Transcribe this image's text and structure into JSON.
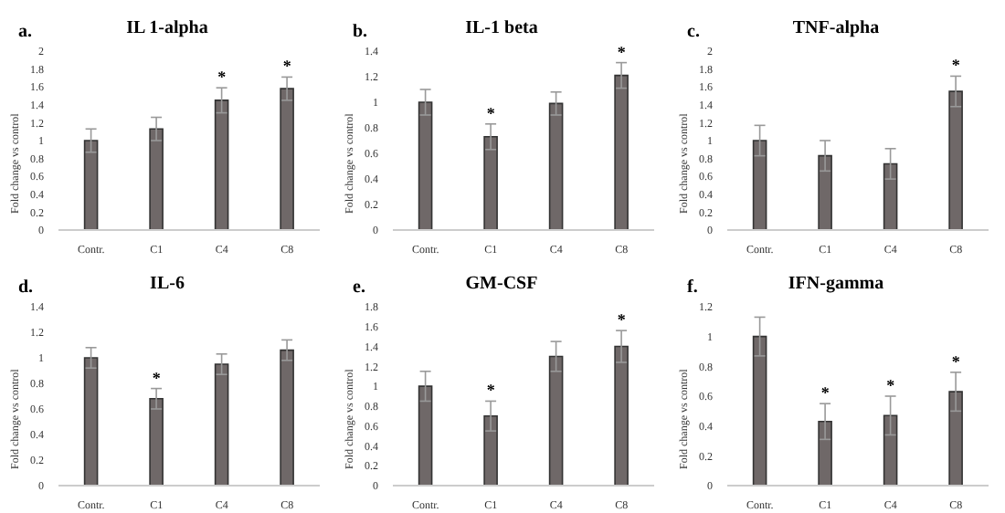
{
  "chart_data": [
    {
      "type": "bar",
      "title": "IL 1-alpha",
      "ylabel": "Fold change vs control",
      "categories": [
        "Contr.",
        "C1",
        "C4",
        "C8"
      ],
      "values": [
        1.0,
        1.13,
        1.45,
        1.58
      ],
      "errors": [
        0.13,
        0.13,
        0.14,
        0.13
      ],
      "color": "#6f6868",
      "ylim": [
        0,
        2
      ],
      "yticks": [
        0,
        0.2,
        0.4,
        0.6,
        0.8,
        1,
        1.2,
        1.4,
        1.6,
        1.8,
        2
      ],
      "annotations": [
        "a.",
        {
          "text": "*",
          "x": "C4",
          "y": 1.45
        },
        {
          "text": "*",
          "x": "C8",
          "y": 1.58
        }
      ]
    },
    {
      "type": "bar",
      "title": "IL-1 beta",
      "ylabel": "Fold change vs control",
      "categories": [
        "Contr.",
        "C1",
        "C4",
        "C8"
      ],
      "values": [
        1.0,
        0.73,
        0.99,
        1.21
      ],
      "errors": [
        0.1,
        0.1,
        0.09,
        0.1
      ],
      "color": "#6f6868",
      "ylim": [
        0,
        1.4
      ],
      "yticks": [
        0,
        0.2,
        0.4,
        0.6,
        0.8,
        1,
        1.2,
        1.4
      ],
      "annotations": [
        "b.",
        {
          "text": "*",
          "x": "C1",
          "y": 0.73
        },
        {
          "text": "*",
          "x": "C8",
          "y": 1.21
        }
      ]
    },
    {
      "type": "bar",
      "title": "TNF-alpha",
      "ylabel": "Fold change vs control",
      "categories": [
        "Contr.",
        "C1",
        "C4",
        "C8"
      ],
      "values": [
        1.0,
        0.83,
        0.74,
        1.55
      ],
      "errors": [
        0.17,
        0.17,
        0.17,
        0.17
      ],
      "color": "#6f6868",
      "ylim": [
        0,
        2
      ],
      "yticks": [
        0,
        0.2,
        0.4,
        0.6,
        0.8,
        1,
        1.2,
        1.4,
        1.6,
        1.8,
        2
      ],
      "annotations": [
        "c.",
        {
          "text": "*",
          "x": "C8",
          "y": 1.55
        }
      ]
    },
    {
      "type": "bar",
      "title": "IL-6",
      "ylabel": "Fold change vs control",
      "categories": [
        "Contr.",
        "C1",
        "C4",
        "C8"
      ],
      "values": [
        1.0,
        0.68,
        0.95,
        1.06
      ],
      "errors": [
        0.08,
        0.08,
        0.08,
        0.08
      ],
      "color": "#6f6868",
      "ylim": [
        0,
        1.4
      ],
      "yticks": [
        0,
        0.2,
        0.4,
        0.6,
        0.8,
        1,
        1.2,
        1.4
      ],
      "annotations": [
        "d.",
        {
          "text": "*",
          "x": "C1",
          "y": 0.68
        }
      ]
    },
    {
      "type": "bar",
      "title": "GM-CSF",
      "ylabel": "Fold change vs control",
      "categories": [
        "Contr.",
        "C1",
        "C4",
        "C8"
      ],
      "values": [
        1.0,
        0.7,
        1.3,
        1.4
      ],
      "errors": [
        0.15,
        0.15,
        0.15,
        0.16
      ],
      "color": "#6f6868",
      "ylim": [
        0,
        1.8
      ],
      "yticks": [
        0,
        0.2,
        0.4,
        0.6,
        0.8,
        1,
        1.2,
        1.4,
        1.6,
        1.8
      ],
      "annotations": [
        "e.",
        {
          "text": "*",
          "x": "C1",
          "y": 0.7
        },
        {
          "text": "*",
          "x": "C8",
          "y": 1.4
        }
      ]
    },
    {
      "type": "bar",
      "title": "IFN-gamma",
      "ylabel": "Fold change vs control",
      "categories": [
        "Contr.",
        "C1",
        "C4",
        "C8"
      ],
      "values": [
        1.0,
        0.43,
        0.47,
        0.63
      ],
      "errors": [
        0.13,
        0.12,
        0.13,
        0.13
      ],
      "color": "#6f6868",
      "ylim": [
        0,
        1.2
      ],
      "yticks": [
        0,
        0.2,
        0.4,
        0.6,
        0.8,
        1,
        1.2
      ],
      "annotations": [
        "f.",
        {
          "text": "*",
          "x": "C1",
          "y": 0.43
        },
        {
          "text": "*",
          "x": "C4",
          "y": 0.47
        },
        {
          "text": "*",
          "x": "C8",
          "y": 0.63
        }
      ]
    }
  ]
}
